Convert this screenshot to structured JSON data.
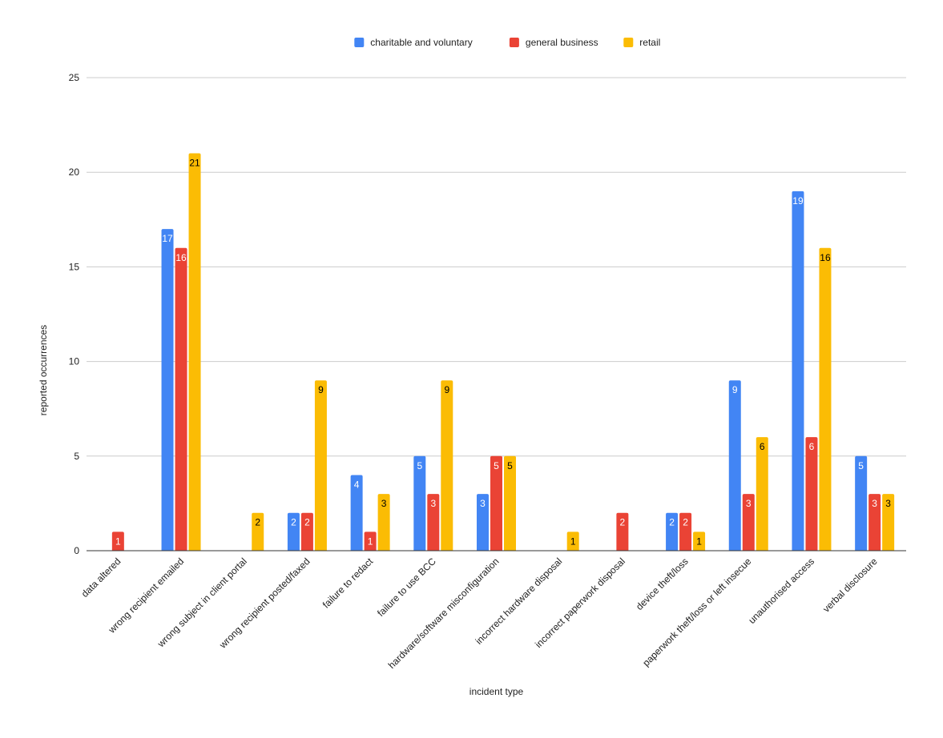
{
  "chart_data": {
    "type": "bar",
    "title": "",
    "xlabel": "incident type",
    "ylabel": "reported occurrences",
    "ylim": [
      0,
      25
    ],
    "yticks": [
      0,
      5,
      10,
      15,
      20,
      25
    ],
    "grid": true,
    "legend_position": "top-center",
    "categories": [
      "data altered",
      "wrong recipient emailed",
      "wrong subject in client portal",
      "wrong recipient posted/faxed",
      "failure to redact",
      "failure to use BCC",
      "hardware/software misconfiguration",
      "incorrect hardware disposal",
      "incorrect paperwork disposal",
      "device theft/loss",
      "paperwork theft/loss or left insecue",
      "unauthorised access",
      "verbal disclosure"
    ],
    "series": [
      {
        "name": "charitable and voluntary",
        "color": "#4285F4",
        "label_color": "#ffffff",
        "values": [
          null,
          17,
          null,
          2,
          4,
          5,
          3,
          null,
          null,
          2,
          9,
          19,
          5
        ]
      },
      {
        "name": "general business",
        "color": "#EA4335",
        "label_color": "#ffffff",
        "values": [
          1,
          16,
          null,
          2,
          1,
          3,
          5,
          null,
          2,
          2,
          3,
          6,
          3
        ]
      },
      {
        "name": "retail",
        "color": "#FBBC04",
        "label_color": "#000000",
        "values": [
          null,
          21,
          2,
          9,
          3,
          9,
          5,
          1,
          null,
          1,
          6,
          16,
          3
        ]
      }
    ]
  }
}
